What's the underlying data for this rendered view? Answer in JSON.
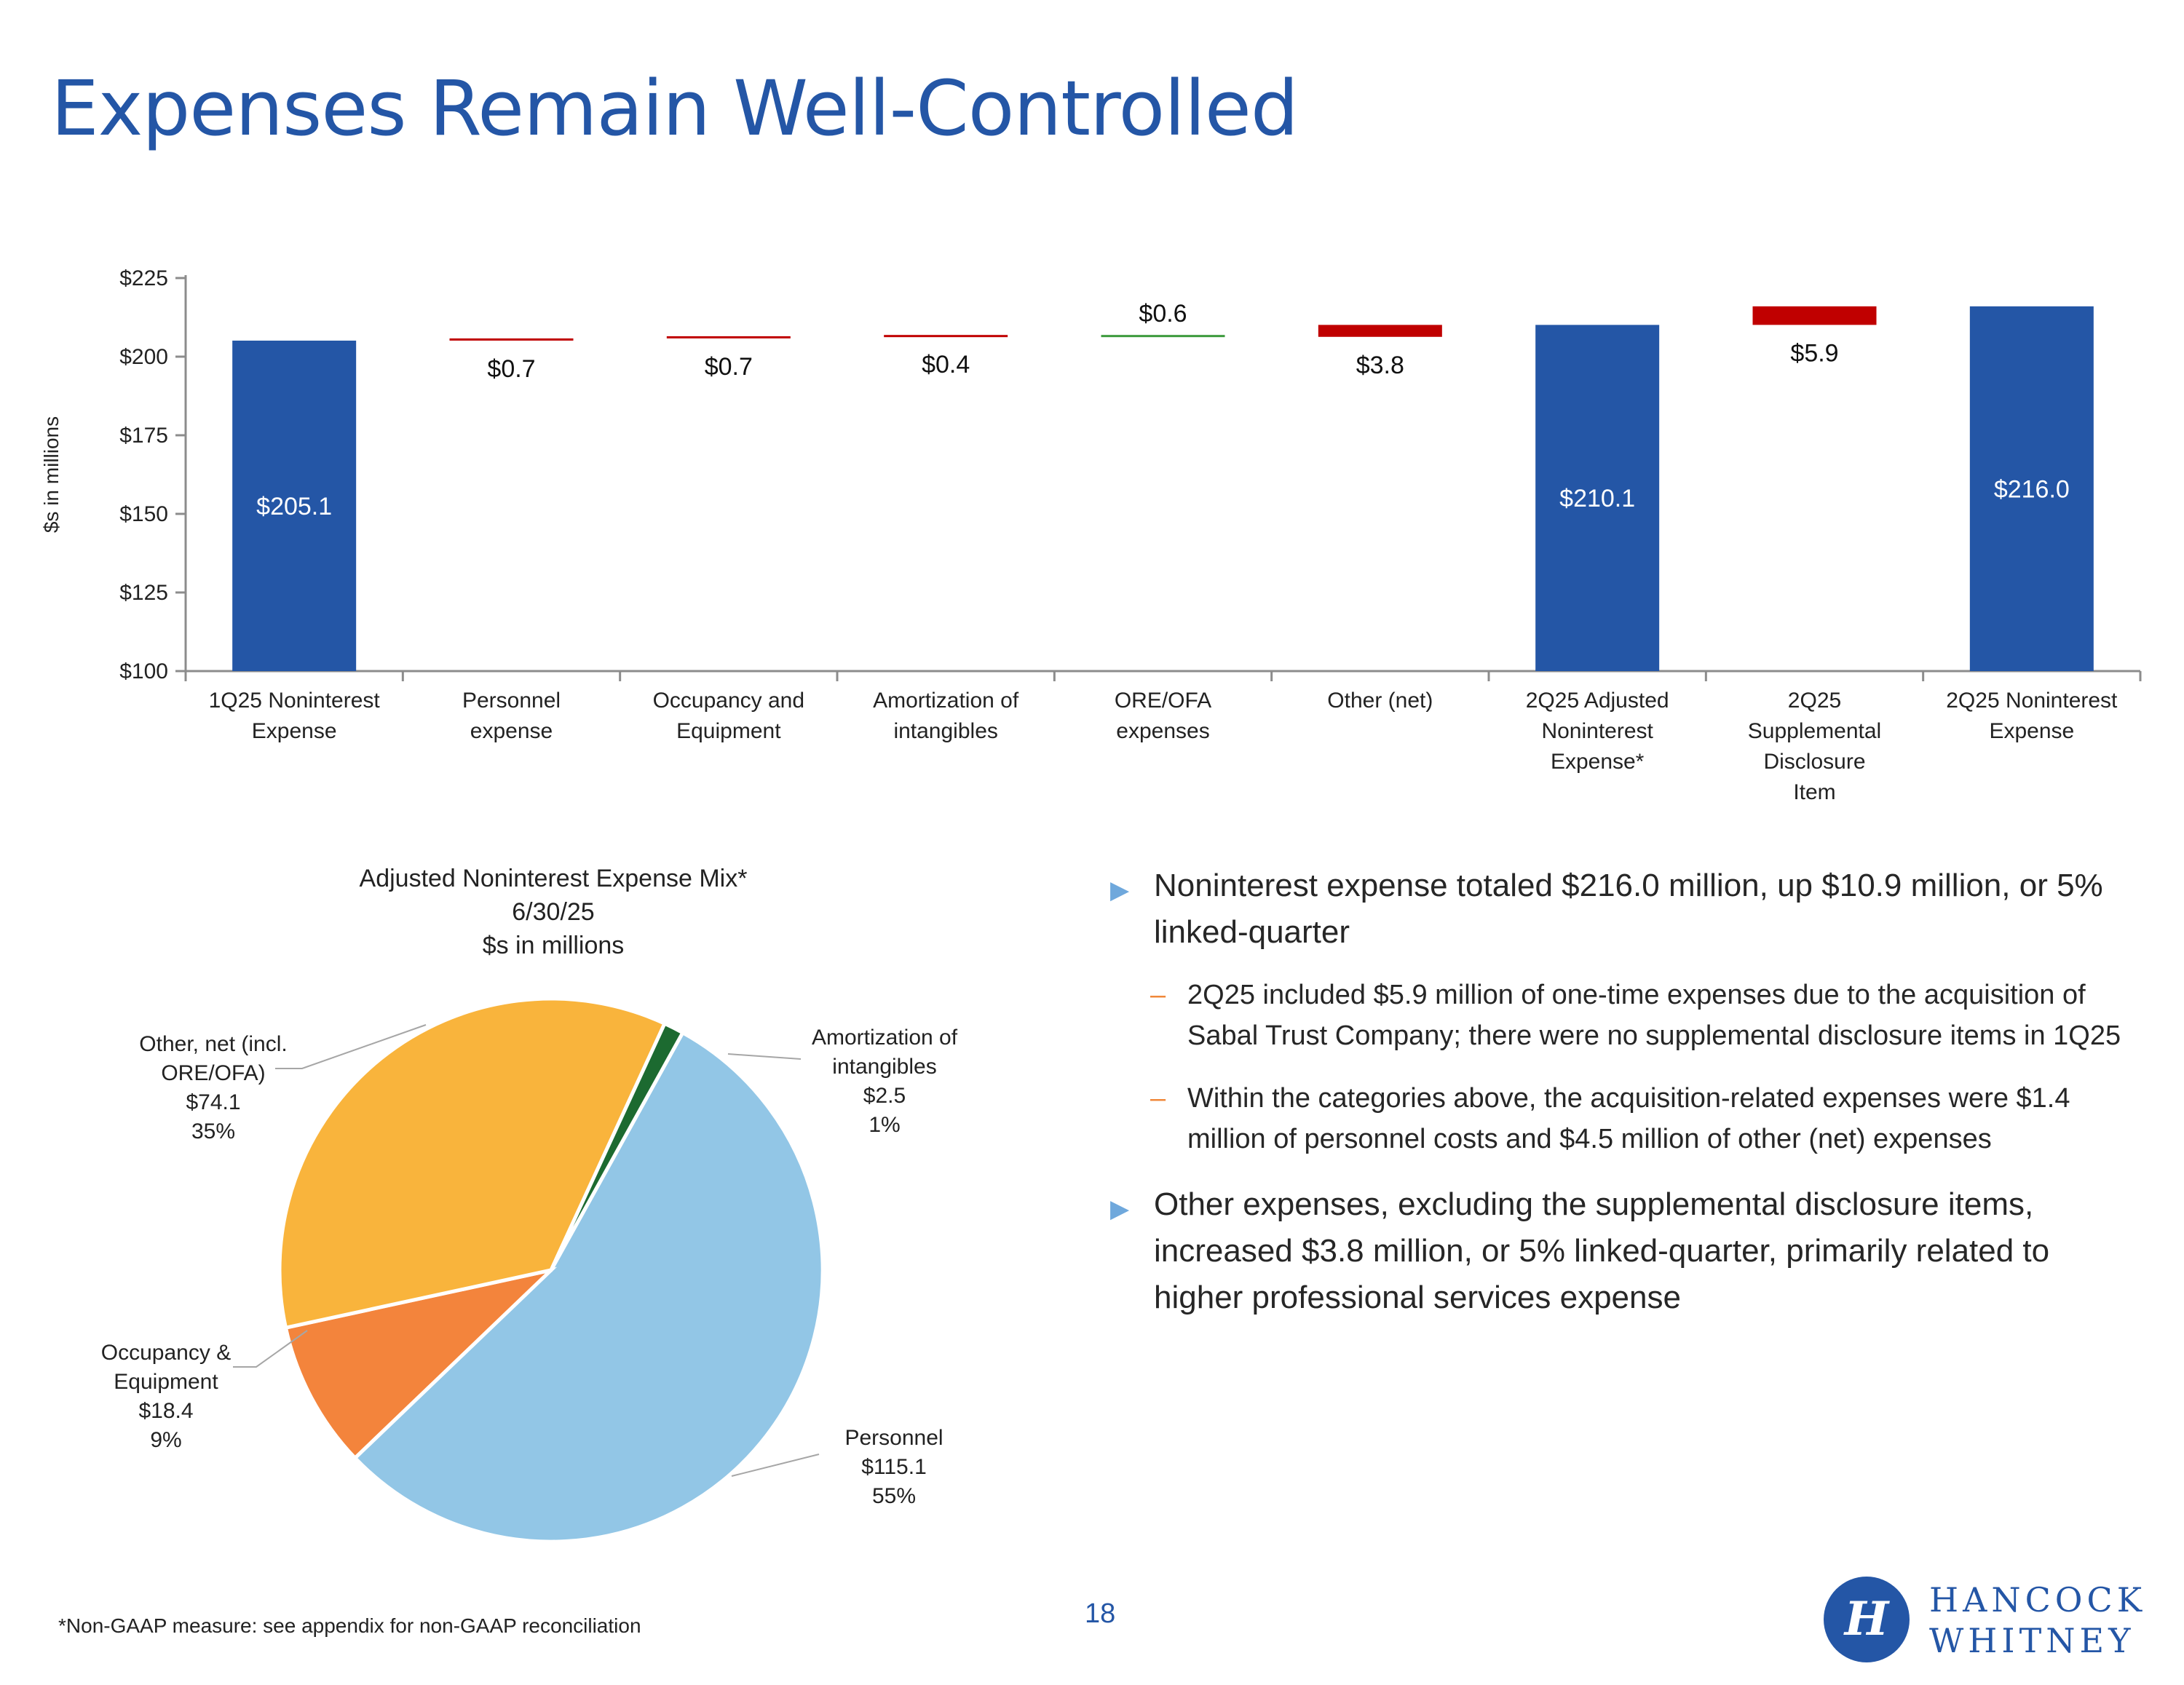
{
  "page": {
    "title": "Expenses Remain Well-Controlled",
    "footnote": "*Non-GAAP measure: see appendix for non-GAAP reconciliation",
    "page_number": "18",
    "logo": {
      "icon": "hancock-whitney-logo-icon",
      "line1": "HANCOCK",
      "line2": "WHITNEY"
    }
  },
  "chart_data": [
    {
      "type": "bar",
      "subtype": "waterfall",
      "ylabel": "$s in millions",
      "ylim": [
        100,
        225
      ],
      "yticks": [
        100,
        125,
        150,
        175,
        200,
        225
      ],
      "ytick_labels": [
        "$100",
        "$125",
        "$150",
        "$175",
        "$200",
        "$225"
      ],
      "categories": [
        [
          "1Q25 Noninterest",
          "Expense"
        ],
        [
          "Personnel",
          "expense"
        ],
        [
          "Occupancy and",
          "Equipment"
        ],
        [
          "Amortization of",
          "intangibles"
        ],
        [
          "ORE/OFA",
          "expenses"
        ],
        [
          "Other (net)"
        ],
        [
          "2Q25 Adjusted",
          "Noninterest",
          "Expense*"
        ],
        [
          "2Q25",
          "Supplemental",
          "Disclosure",
          "Item"
        ],
        [
          "2Q25 Noninterest",
          "Expense"
        ]
      ],
      "bars": [
        {
          "kind": "total",
          "start": 100,
          "end": 205.1,
          "label": "$205.1",
          "color": "#2456a6"
        },
        {
          "kind": "increase",
          "start": 205.1,
          "end": 205.8,
          "label": "$0.7",
          "color": "#c00000"
        },
        {
          "kind": "increase",
          "start": 205.8,
          "end": 206.5,
          "label": "$0.7",
          "color": "#c00000"
        },
        {
          "kind": "increase",
          "start": 206.5,
          "end": 206.9,
          "label": "$0.4",
          "color": "#c00000"
        },
        {
          "kind": "decrease",
          "start": 206.9,
          "end": 206.3,
          "label": "$0.6",
          "color": "#3a9a3a"
        },
        {
          "kind": "increase",
          "start": 206.3,
          "end": 210.1,
          "label": "$3.8",
          "color": "#c00000"
        },
        {
          "kind": "total",
          "start": 100,
          "end": 210.1,
          "label": "$210.1",
          "color": "#2456a6"
        },
        {
          "kind": "increase",
          "start": 210.1,
          "end": 216.0,
          "label": "$5.9",
          "color": "#c00000"
        },
        {
          "kind": "total",
          "start": 100,
          "end": 216.0,
          "label": "$216.0",
          "color": "#2456a6"
        }
      ]
    },
    {
      "type": "pie",
      "title": [
        "Adjusted Noninterest Expense Mix*",
        "6/30/25",
        "$s in millions"
      ],
      "slices": [
        {
          "name": "Personnel",
          "value": 115.1,
          "label": [
            "Personnel",
            "$115.1",
            "55%"
          ],
          "color": "#92c6e6"
        },
        {
          "name": "Occupancy & Equipment",
          "value": 18.4,
          "label": [
            "Occupancy &",
            "Equipment",
            "$18.4",
            "9%"
          ],
          "color": "#f3843c"
        },
        {
          "name": "Other, net (incl. ORE/OFA)",
          "value": 74.1,
          "label": [
            "Other, net (incl.",
            "ORE/OFA)",
            "$74.1",
            "35%"
          ],
          "color": "#f9b43c"
        },
        {
          "name": "Amortization of intangibles",
          "value": 2.5,
          "label": [
            "Amortization of",
            "intangibles",
            "$2.5",
            "1%"
          ],
          "color": "#1c6a30"
        }
      ]
    }
  ],
  "bullets": {
    "b1": "Noninterest expense totaled $216.0 million, up $10.9 million, or 5% linked-quarter",
    "b1_sub1": "2Q25 included $5.9 million of one-time expenses due to the acquisition of Sabal Trust Company; there were no supplemental disclosure items in 1Q25",
    "b1_sub2": "Within the categories above, the acquisition-related expenses were $1.4 million of personnel costs and $4.5 million of other (net) expenses",
    "b2": "Other expenses, excluding the supplemental disclosure items, increased $3.8 million, or 5% linked-quarter, primarily related to higher professional services expense"
  }
}
